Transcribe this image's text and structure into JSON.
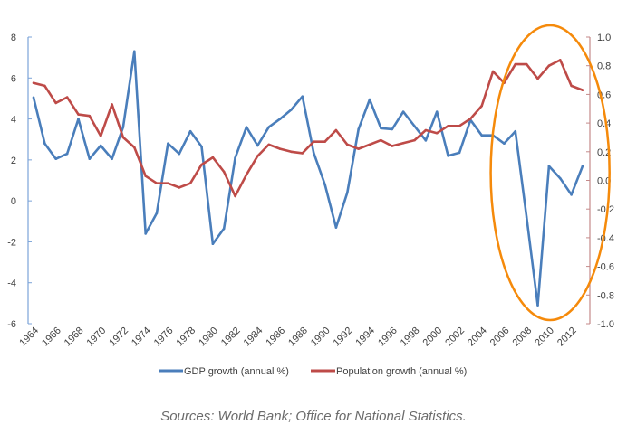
{
  "chart_data": {
    "type": "line",
    "title": "",
    "xlabel": "",
    "ylabel": "",
    "y2label": "",
    "x": [
      1964,
      1965,
      1966,
      1967,
      1968,
      1969,
      1970,
      1971,
      1972,
      1973,
      1974,
      1975,
      1976,
      1977,
      1978,
      1979,
      1980,
      1981,
      1982,
      1983,
      1984,
      1985,
      1986,
      1987,
      1988,
      1989,
      1990,
      1991,
      1992,
      1993,
      1994,
      1995,
      1996,
      1997,
      1998,
      1999,
      2000,
      2001,
      2002,
      2003,
      2004,
      2005,
      2006,
      2007,
      2008,
      2009,
      2010,
      2011,
      2012,
      2013
    ],
    "x_tick_labels": [
      "1964",
      "1966",
      "1968",
      "1970",
      "1972",
      "1974",
      "1976",
      "1978",
      "1980",
      "1982",
      "1984",
      "1986",
      "1988",
      "1990",
      "1992",
      "1994",
      "1996",
      "1998",
      "2000",
      "2002",
      "2004",
      "2006",
      "2008",
      "2010",
      "2012"
    ],
    "ylim": [
      -6,
      8
    ],
    "y_tick_labels": [
      "8",
      "6",
      "4",
      "2",
      "0",
      "-2",
      "-4",
      "-6"
    ],
    "y_ticks": [
      8,
      6,
      4,
      2,
      0,
      -2,
      -4,
      -6
    ],
    "y2lim": [
      -1.0,
      1.0
    ],
    "y2_tick_labels": [
      "1.0",
      "0.8",
      "0.6",
      "0.4",
      "0.2",
      "0.0",
      "-0.2",
      "-0.4",
      "-0.6",
      "-0.8",
      "-1.0"
    ],
    "y2_ticks": [
      1.0,
      0.8,
      0.6,
      0.4,
      0.2,
      0.0,
      -0.2,
      -0.4,
      -0.6,
      -0.8,
      -1.0
    ],
    "grid": false,
    "legend_position": "bottom",
    "series": [
      {
        "name": "GDP growth (annual %)",
        "axis": "left",
        "color": "#4a7ebb",
        "values": [
          5.05,
          2.8,
          2.05,
          2.3,
          4.0,
          2.05,
          2.7,
          2.05,
          3.6,
          7.3,
          -1.6,
          -0.6,
          2.8,
          2.3,
          3.4,
          2.65,
          -2.1,
          -1.35,
          2.1,
          3.6,
          2.7,
          3.6,
          4.0,
          4.45,
          5.1,
          2.35,
          0.8,
          -1.3,
          0.4,
          3.5,
          4.95,
          3.55,
          3.5,
          4.35,
          3.65,
          2.95,
          4.35,
          2.2,
          2.35,
          3.95,
          3.2,
          3.2,
          2.8,
          3.4,
          -0.8,
          -5.1,
          1.7,
          1.1,
          0.3,
          1.7
        ]
      },
      {
        "name": "Population growth (annual %)",
        "axis": "right",
        "color": "#be4b48",
        "values": [
          0.68,
          0.66,
          0.54,
          0.58,
          0.46,
          0.45,
          0.31,
          0.53,
          0.3,
          0.23,
          0.03,
          -0.02,
          -0.02,
          -0.05,
          -0.02,
          0.11,
          0.16,
          0.06,
          -0.11,
          0.04,
          0.17,
          0.25,
          0.22,
          0.2,
          0.19,
          0.27,
          0.27,
          0.35,
          0.25,
          0.22,
          0.25,
          0.28,
          0.24,
          0.26,
          0.28,
          0.35,
          0.33,
          0.38,
          0.38,
          0.43,
          0.52,
          0.76,
          0.68,
          0.81,
          0.81,
          0.71,
          0.8,
          0.84,
          0.66,
          0.63
        ]
      }
    ],
    "annotations": [
      {
        "type": "ellipse",
        "color": "#f58a0b",
        "x_range": [
          2004.8,
          2015.4
        ],
        "y_range": [
          -6,
          8
        ]
      }
    ],
    "axis_colors": {
      "left": "#7ba3d8",
      "right": "#c48a8a"
    }
  },
  "caption": "Sources: World Bank; Office for National Statistics."
}
